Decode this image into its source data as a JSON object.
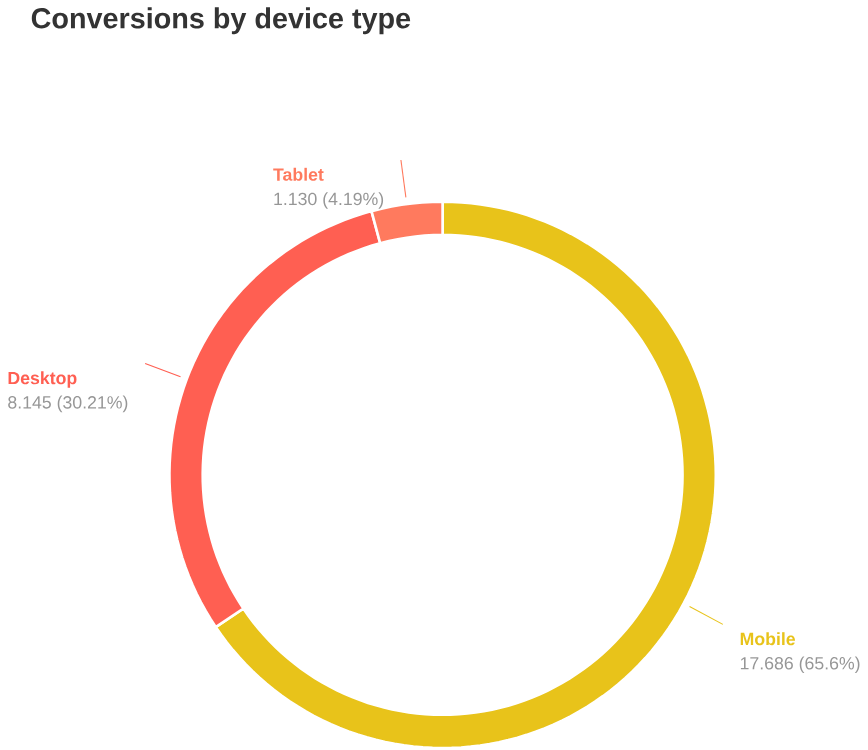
{
  "chart_data": {
    "type": "donut",
    "title": "Conversions by device type",
    "categories": [
      "Mobile",
      "Desktop",
      "Tablet"
    ],
    "values": [
      17.686,
      8.145,
      1.13
    ],
    "value_labels": [
      "17.686 (65.6%)",
      "8.145 (30.21%)",
      "1.130 (4.19%)"
    ],
    "colors": [
      "#e8c31a",
      "#ff5f52",
      "#ff7a5e"
    ]
  }
}
